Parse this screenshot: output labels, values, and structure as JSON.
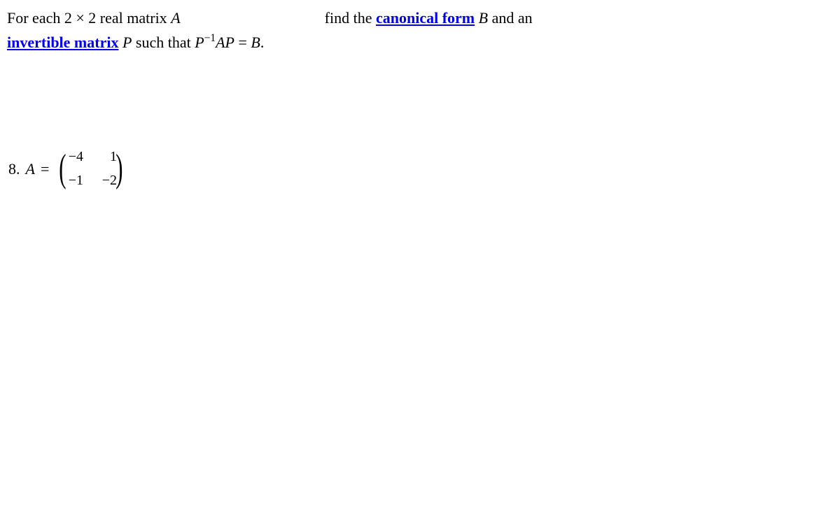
{
  "statement": {
    "part1": "For each ",
    "dims": "2 × 2",
    "part2": " real matrix ",
    "A": "A",
    "gap_text": "find the ",
    "link1": "canonical form",
    "space_B": " ",
    "B": "B",
    "part3": " and an",
    "link2": "invertible matrix",
    "space_P": " ",
    "P": "P",
    "part4": " such that ",
    "P2": "P",
    "exp": "−1",
    "AP": "AP",
    "eq": " = ",
    "B2": "B",
    "period": "."
  },
  "item": {
    "number": "8.",
    "label": "A",
    "equals": "=",
    "matrix": {
      "r1c1": "−4",
      "r1c2": "1",
      "r2c1": "−1",
      "r2c2": "−2"
    }
  },
  "style": {
    "text_color": "#000000",
    "link_color": "#0000ee",
    "background": "#ffffff",
    "font_size_body": 22,
    "font_size_matrix": 20,
    "paren_font_size": 56
  }
}
